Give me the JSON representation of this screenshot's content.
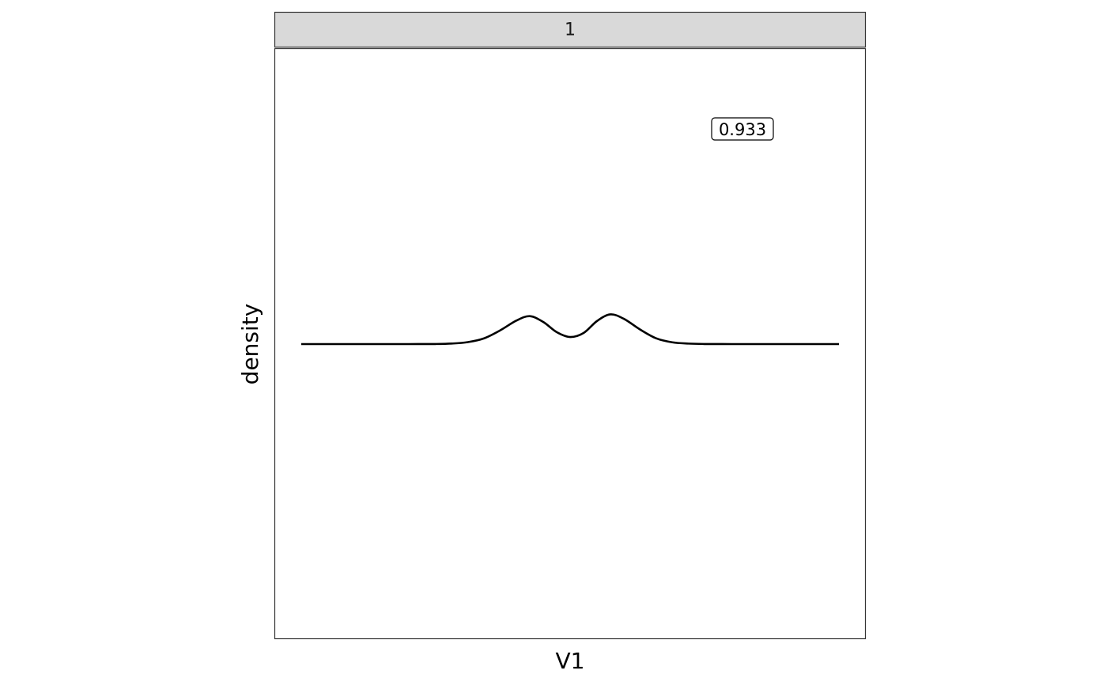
{
  "chart_data": {
    "type": "line",
    "facet_label": "1",
    "xlabel": "V1",
    "ylabel": "density",
    "annotation": "0.933",
    "x_ticks_shown": false,
    "y_ticks_shown": false,
    "grid": false,
    "x": [
      0.0,
      0.05,
      0.1,
      0.15,
      0.2,
      0.25,
      0.28,
      0.31,
      0.34,
      0.37,
      0.4,
      0.425,
      0.45,
      0.475,
      0.5,
      0.525,
      0.55,
      0.575,
      0.6,
      0.63,
      0.66,
      0.69,
      0.72,
      0.75,
      0.8,
      0.85,
      0.9,
      0.95,
      1.0
    ],
    "series": [
      {
        "values": [
          0.0,
          0.0,
          0.0,
          0.0,
          0.0,
          0.002,
          0.012,
          0.045,
          0.13,
          0.31,
          0.53,
          0.63,
          0.5,
          0.27,
          0.16,
          0.25,
          0.52,
          0.67,
          0.57,
          0.33,
          0.13,
          0.04,
          0.011,
          0.002,
          0.0,
          0.0,
          0.0,
          0.0,
          0.0
        ]
      }
    ],
    "colors": {
      "line": "#000000",
      "strip_fill": "#d9d9d9",
      "panel_border": "#333333"
    }
  }
}
